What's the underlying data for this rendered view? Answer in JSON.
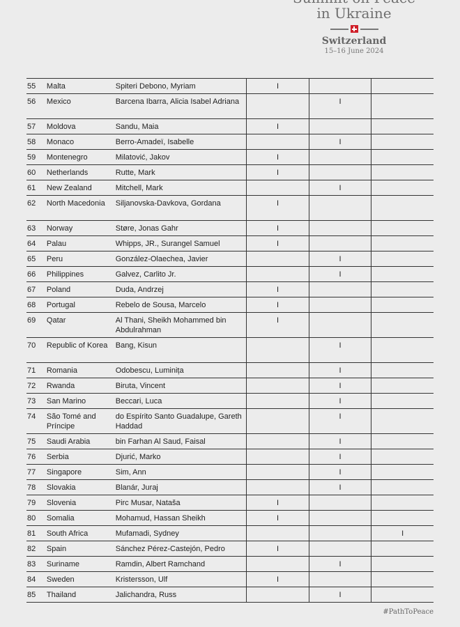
{
  "header": {
    "title_line1": "Summit on Peace",
    "title_line2": "in Ukraine",
    "country": "Switzerland",
    "date": "15–16 June 2024",
    "flag_icon": "swiss-flag-icon"
  },
  "mark_glyph": "I",
  "rows": [
    {
      "num": "55",
      "country": "Malta",
      "name": "Spiteri Debono, Myriam",
      "col": 1
    },
    {
      "num": "56",
      "country": "Mexico",
      "name": "Barcena Ibarra, Alicia Isabel Adriana",
      "col": 2
    },
    {
      "num": "57",
      "country": "Moldova",
      "name": "Sandu, Maia",
      "col": 1
    },
    {
      "num": "58",
      "country": "Monaco",
      "name": "Berro-Amadeï, Isabelle",
      "col": 2
    },
    {
      "num": "59",
      "country": "Montenegro",
      "name": "Milatović, Jakov",
      "col": 1
    },
    {
      "num": "60",
      "country": "Netherlands",
      "name": "Rutte, Mark",
      "col": 1
    },
    {
      "num": "61",
      "country": "New Zealand",
      "name": "Mitchell, Mark",
      "col": 2
    },
    {
      "num": "62",
      "country": "North Macedonia",
      "name": "Siljanovska-Davkova, Gordana",
      "col": 1
    },
    {
      "num": "63",
      "country": "Norway",
      "name": "Støre, Jonas Gahr",
      "col": 1
    },
    {
      "num": "64",
      "country": "Palau",
      "name": "Whipps, JR., Surangel Samuel",
      "col": 1
    },
    {
      "num": "65",
      "country": "Peru",
      "name": "González-Olaechea, Javier",
      "col": 2
    },
    {
      "num": "66",
      "country": "Philippines",
      "name": "Galvez, Carlito Jr.",
      "col": 2
    },
    {
      "num": "67",
      "country": "Poland",
      "name": "Duda, Andrzej",
      "col": 1
    },
    {
      "num": "68",
      "country": "Portugal",
      "name": "Rebelo de Sousa, Marcelo",
      "col": 1
    },
    {
      "num": "69",
      "country": "Qatar",
      "name": "Al Thani, Sheikh Mohammed bin Abdulrahman",
      "col": 1
    },
    {
      "num": "70",
      "country": "Republic of Korea",
      "name": "Bang, Kisun",
      "col": 2
    },
    {
      "num": "71",
      "country": "Romania",
      "name": "Odobescu, Luminița",
      "col": 2
    },
    {
      "num": "72",
      "country": "Rwanda",
      "name": "Biruta, Vincent",
      "col": 2
    },
    {
      "num": "73",
      "country": "San Marino",
      "name": "Beccari, Luca",
      "col": 2
    },
    {
      "num": "74",
      "country": "São Tomé and Príncipe",
      "name": "do Espírito Santo Guadalupe, Gareth Haddad",
      "col": 2
    },
    {
      "num": "75",
      "country": "Saudi Arabia",
      "name": "bin Farhan Al Saud, Faisal",
      "col": 2
    },
    {
      "num": "76",
      "country": "Serbia",
      "name": "Djurić, Marko",
      "col": 2
    },
    {
      "num": "77",
      "country": "Singapore",
      "name": "Sim, Ann",
      "col": 2
    },
    {
      "num": "78",
      "country": "Slovakia",
      "name": "Blanár, Juraj",
      "col": 2
    },
    {
      "num": "79",
      "country": "Slovenia",
      "name": "Pirc Musar, Nataša",
      "col": 1
    },
    {
      "num": "80",
      "country": "Somalia",
      "name": "Mohamud, Hassan Sheikh",
      "col": 1
    },
    {
      "num": "81",
      "country": "South Africa",
      "name": "Mufamadi, Sydney",
      "col": 3
    },
    {
      "num": "82",
      "country": "Spain",
      "name": "Sánchez Pérez-Castejón, Pedro",
      "col": 1
    },
    {
      "num": "83",
      "country": "Suriname",
      "name": "Ramdin, Albert Ramchand",
      "col": 2
    },
    {
      "num": "84",
      "country": "Sweden",
      "name": "Kristersson, Ulf",
      "col": 1
    },
    {
      "num": "85",
      "country": "Thailand",
      "name": "Jalichandra, Russ",
      "col": 2
    }
  ],
  "footer": {
    "hashtag": "#PathToPeace"
  }
}
